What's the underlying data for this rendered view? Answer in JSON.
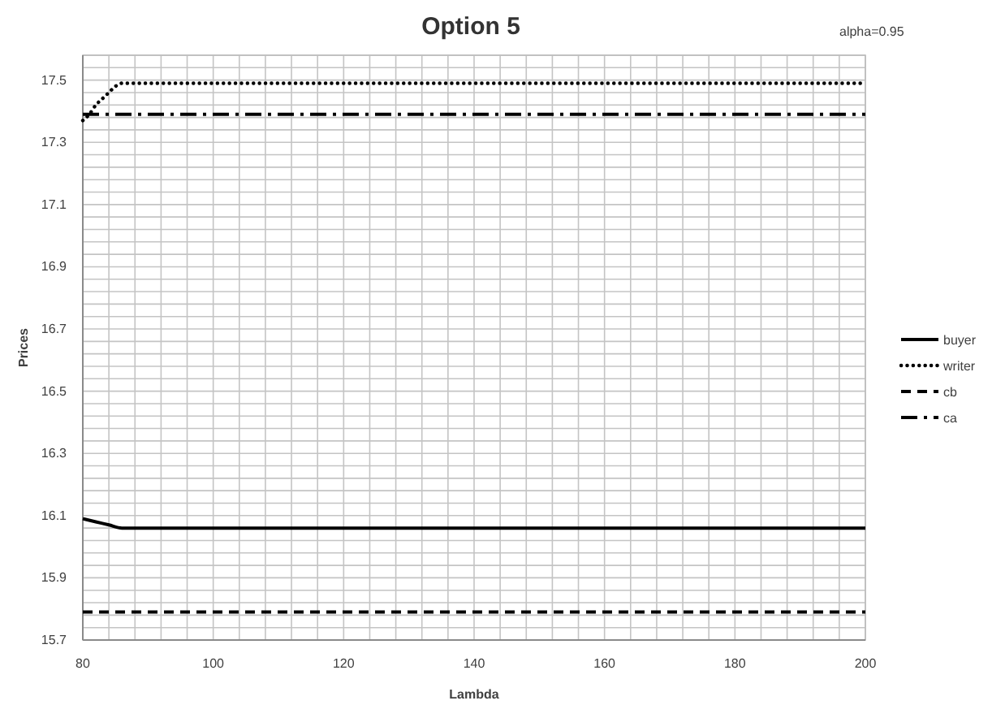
{
  "chart_data": {
    "type": "line",
    "title": "Option 5",
    "xlabel": "Lambda",
    "ylabel": "Prices",
    "annotations": [
      "alpha=0.95"
    ],
    "xlim": [
      80,
      200
    ],
    "ylim": [
      15.7,
      17.58
    ],
    "xticks": [
      80,
      {
        "value": 84,
        "label": null
      },
      {
        "value": 88,
        "label": null
      },
      {
        "value": 92,
        "label": null
      },
      {
        "value": 96,
        "label": null
      },
      100,
      {
        "value": 104,
        "label": null
      },
      {
        "value": 108,
        "label": null
      },
      {
        "value": 112,
        "label": null
      },
      {
        "value": 116,
        "label": null
      },
      120,
      {
        "value": 124,
        "label": null
      },
      {
        "value": 128,
        "label": null
      },
      {
        "value": 132,
        "label": null
      },
      {
        "value": 136,
        "label": null
      },
      140,
      {
        "value": 144,
        "label": null
      },
      {
        "value": 148,
        "label": null
      },
      {
        "value": 152,
        "label": null
      },
      {
        "value": 156,
        "label": null
      },
      160,
      {
        "value": 164,
        "label": null
      },
      {
        "value": 168,
        "label": null
      },
      {
        "value": 172,
        "label": null
      },
      {
        "value": 176,
        "label": null
      },
      180,
      {
        "value": 184,
        "label": null
      },
      {
        "value": 188,
        "label": null
      },
      {
        "value": 192,
        "label": null
      },
      {
        "value": 196,
        "label": null
      },
      200
    ],
    "yticks": [
      15.7,
      {
        "value": 15.74,
        "label": null
      },
      {
        "value": 15.78,
        "label": null
      },
      {
        "value": 15.82,
        "label": null
      },
      {
        "value": 15.86,
        "label": null
      },
      15.9,
      {
        "value": 15.94,
        "label": null
      },
      {
        "value": 15.98,
        "label": null
      },
      {
        "value": 16.02,
        "label": null
      },
      {
        "value": 16.06,
        "label": null
      },
      16.1,
      {
        "value": 16.14,
        "label": null
      },
      {
        "value": 16.18,
        "label": null
      },
      {
        "value": 16.22,
        "label": null
      },
      {
        "value": 16.26,
        "label": null
      },
      16.3,
      {
        "value": 16.34,
        "label": null
      },
      {
        "value": 16.38,
        "label": null
      },
      {
        "value": 16.42,
        "label": null
      },
      {
        "value": 16.46,
        "label": null
      },
      16.5,
      {
        "value": 16.54,
        "label": null
      },
      {
        "value": 16.58,
        "label": null
      },
      {
        "value": 16.62,
        "label": null
      },
      {
        "value": 16.66,
        "label": null
      },
      16.7,
      {
        "value": 16.74,
        "label": null
      },
      {
        "value": 16.78,
        "label": null
      },
      {
        "value": 16.82,
        "label": null
      },
      {
        "value": 16.86,
        "label": null
      },
      16.9,
      {
        "value": 16.94,
        "label": null
      },
      {
        "value": 16.98,
        "label": null
      },
      {
        "value": 17.02,
        "label": null
      },
      {
        "value": 17.06,
        "label": null
      },
      17.1,
      {
        "value": 17.14,
        "label": null
      },
      {
        "value": 17.18,
        "label": null
      },
      {
        "value": 17.22,
        "label": null
      },
      {
        "value": 17.26,
        "label": null
      },
      17.3,
      {
        "value": 17.34,
        "label": null
      },
      {
        "value": 17.38,
        "label": null
      },
      {
        "value": 17.42,
        "label": null
      },
      {
        "value": 17.46,
        "label": null
      },
      17.5,
      {
        "value": 17.54,
        "label": null
      },
      {
        "value": 17.58,
        "label": null
      }
    ],
    "grid": true,
    "legend": "right",
    "series": [
      {
        "name": "buyer",
        "color": "#000000",
        "line_style": "solid",
        "x": [
          80,
          82,
          84,
          86,
          90,
          120,
          160,
          200
        ],
        "values": [
          16.09,
          16.08,
          16.07,
          16.06,
          16.06,
          16.06,
          16.06,
          16.06
        ]
      },
      {
        "name": "writer",
        "color": "#000000",
        "line_style": "dotted",
        "x": [
          80,
          81,
          82,
          83,
          84,
          85,
          86,
          88,
          90,
          120,
          160,
          200
        ],
        "values": [
          17.37,
          17.39,
          17.42,
          17.44,
          17.46,
          17.48,
          17.49,
          17.49,
          17.49,
          17.49,
          17.49,
          17.49
        ]
      },
      {
        "name": "cb",
        "color": "#000000",
        "line_style": "dashed",
        "x": [
          80,
          120,
          160,
          200
        ],
        "values": [
          15.79,
          15.79,
          15.79,
          15.79
        ]
      },
      {
        "name": "ca",
        "color": "#000000",
        "line_style": "dashdot",
        "x": [
          80,
          120,
          160,
          200
        ],
        "values": [
          17.39,
          17.39,
          17.39,
          17.39
        ]
      }
    ]
  }
}
